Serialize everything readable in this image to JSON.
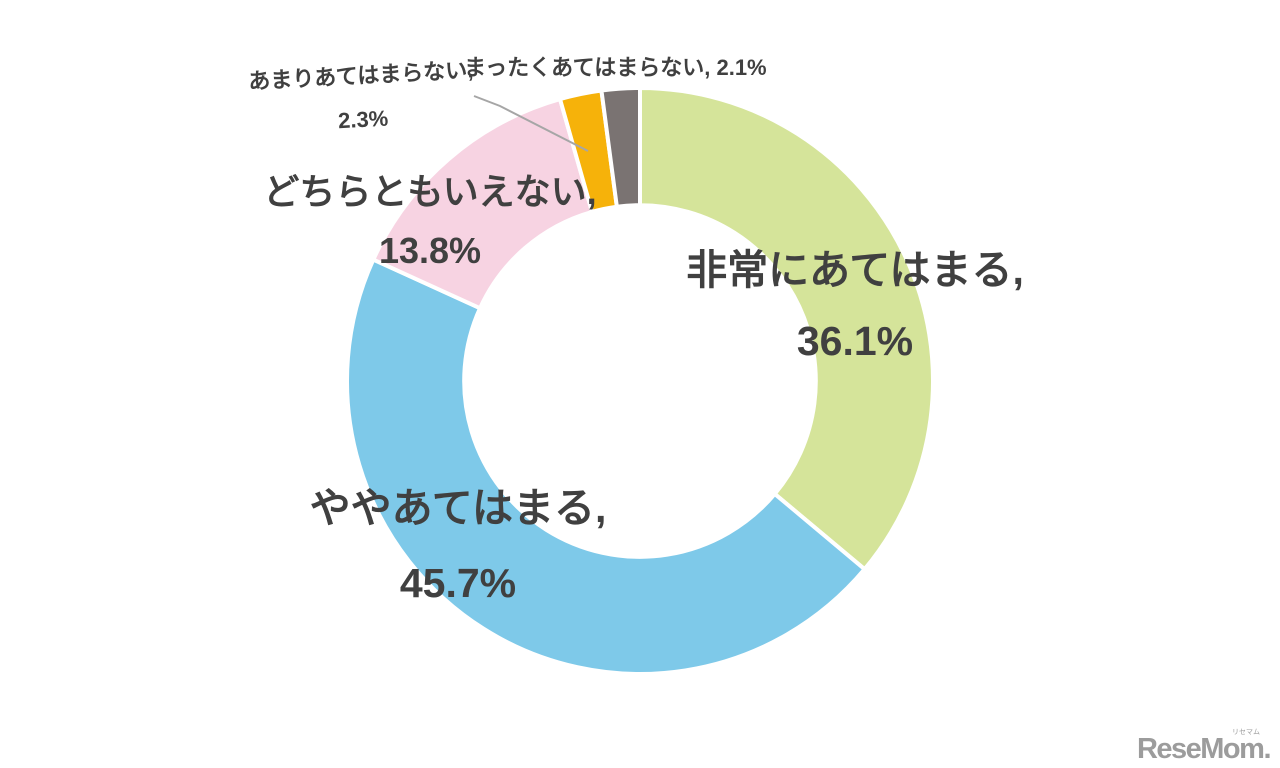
{
  "page": {
    "background": "#ffffff"
  },
  "chart_data": {
    "type": "pie",
    "subtype": "donut",
    "title": "",
    "start_angle_deg": 0,
    "direction": "clockwise",
    "hole_radius_ratio": 0.6,
    "total": 100,
    "categories": [
      "非常にあてはまる",
      "ややあてはまる",
      "どちらともいえない",
      "あまりあてはまらない",
      "まったくあてはまらない"
    ],
    "values": [
      36.1,
      45.7,
      13.8,
      2.3,
      2.1
    ],
    "slices": [
      {
        "category": "非常にあてはまる",
        "value": 36.1,
        "color": "#d5e49a",
        "label_line1": "非常にあてはまる,",
        "label_line2": "36.1%"
      },
      {
        "category": "ややあてはまる",
        "value": 45.7,
        "color": "#7ec9e9",
        "label_line1": "ややあてはまる,",
        "label_line2": "45.7%"
      },
      {
        "category": "どちらともいえない",
        "value": 13.8,
        "color": "#f7d3e2",
        "label_line1": "どちらともいえない,",
        "label_line2": "13.8%"
      },
      {
        "category": "あまりあてはまらない",
        "value": 2.3,
        "color": "#f6b20a",
        "label_line1": "あまりあてはまらない,",
        "label_line2": "2.3%"
      },
      {
        "category": "まったくあてはまらない",
        "value": 2.1,
        "color": "#7a7372",
        "label_line1": "まったくあてはまらない, 2.1%"
      }
    ],
    "label_color": "#404040",
    "leader_line_color": "#a6a6a6",
    "legend": "none",
    "slice_border_color": "#ffffff"
  },
  "logo": {
    "text": "ReseMom",
    "dot": ".",
    "ruby": "リセマム",
    "color": "#9c9c9c"
  }
}
